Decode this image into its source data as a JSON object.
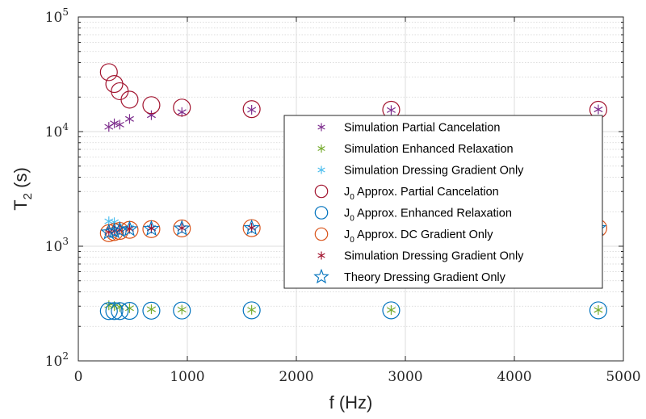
{
  "chart_data": {
    "type": "scatter",
    "title": "",
    "xlabel": "f (Hz)",
    "ylabel": "T_2 (s)",
    "ylabel_main": "T",
    "ylabel_sub": "2",
    "ylabel_unit": " (s)",
    "xlim": [
      0,
      5000
    ],
    "ylim": [
      100,
      100000
    ],
    "yscale": "log",
    "grid": true,
    "minor_grid": true,
    "legend_position": "center-right",
    "x_ticks": [
      0,
      1000,
      2000,
      3000,
      4000,
      5000
    ],
    "x_tick_labels": [
      "0",
      "1000",
      "2000",
      "3000",
      "4000",
      "5000"
    ],
    "y_ticks": [
      100,
      1000,
      10000,
      100000
    ],
    "y_tick_labels": [
      {
        "base": "10",
        "exp": "2"
      },
      {
        "base": "10",
        "exp": "3"
      },
      {
        "base": "10",
        "exp": "4"
      },
      {
        "base": "10",
        "exp": "5"
      }
    ],
    "series": [
      {
        "name": "Simulation Partial Cancelation",
        "marker": "asterisk",
        "color": "#7E2F8E",
        "x": [
          280,
          330,
          380,
          470,
          670,
          950,
          1590,
          2870,
          4770
        ],
        "y": [
          11000,
          11800,
          11500,
          12900,
          13900,
          14800,
          15500,
          15400,
          15600
        ]
      },
      {
        "name": "Simulation Enhanced Relaxation",
        "marker": "asterisk",
        "color": "#77AC30",
        "x": [
          280,
          330,
          380,
          470,
          670,
          950,
          1590,
          2870,
          4770
        ],
        "y": [
          305,
          300,
          295,
          288,
          282,
          280,
          279,
          278,
          278
        ]
      },
      {
        "name": "Simulation Dressing Gradient Only",
        "marker": "asterisk",
        "color": "#4DBEEE",
        "x": [
          280,
          330,
          380,
          470,
          670,
          950,
          1590,
          2870,
          4770
        ],
        "y": [
          1650,
          1620,
          1500,
          1460,
          1450,
          1440,
          1440,
          1440,
          1440
        ]
      },
      {
        "name": "J_0 Approx. Partial Cancelation",
        "label_prefix": "J",
        "label_sub": "0",
        "label_rest": " Approx. Partial Cancelation",
        "marker": "circle",
        "color": "#A2142F",
        "x": [
          280,
          330,
          380,
          470,
          670,
          950,
          1590,
          2870,
          4770
        ],
        "y": [
          33000,
          26000,
          22500,
          19000,
          17000,
          16200,
          15700,
          15500,
          15500
        ]
      },
      {
        "name": "J_0 Approx. Enhanced Relaxation",
        "label_prefix": "J",
        "label_sub": "0",
        "label_rest": " Approx. Enhanced Relaxation",
        "marker": "circle",
        "color": "#0072BD",
        "x": [
          280,
          330,
          380,
          470,
          670,
          950,
          1590,
          2870,
          4770
        ],
        "y": [
          272,
          272,
          272,
          273,
          274,
          275,
          276,
          276,
          276
        ]
      },
      {
        "name": "J_0 Approx.  DC Gradient Only",
        "label_prefix": "J",
        "label_sub": "0",
        "label_rest": " Approx.  DC Gradient Only",
        "marker": "circle",
        "color": "#D95319",
        "x": [
          280,
          330,
          380,
          470,
          670,
          950,
          1590,
          2870,
          4770
        ],
        "y": [
          1300,
          1330,
          1360,
          1390,
          1410,
          1430,
          1440,
          1440,
          1440
        ]
      },
      {
        "name": "Simulation Dressing Gradient Only",
        "marker": "asterisk",
        "color": "#A2142F",
        "x": [
          280,
          330,
          380,
          470,
          670,
          950,
          1590,
          2870,
          4770
        ],
        "y": [
          1330,
          1360,
          1390,
          1420,
          1430,
          1440,
          1450,
          1450,
          1450
        ]
      },
      {
        "name": "Theory Dressing Gradient Only",
        "marker": "star",
        "color": "#0072BD",
        "x": [
          280,
          330,
          380,
          470,
          670,
          950,
          1590,
          2870,
          4770
        ],
        "y": [
          1320,
          1350,
          1380,
          1410,
          1420,
          1430,
          1440,
          1440,
          1440
        ]
      }
    ]
  }
}
